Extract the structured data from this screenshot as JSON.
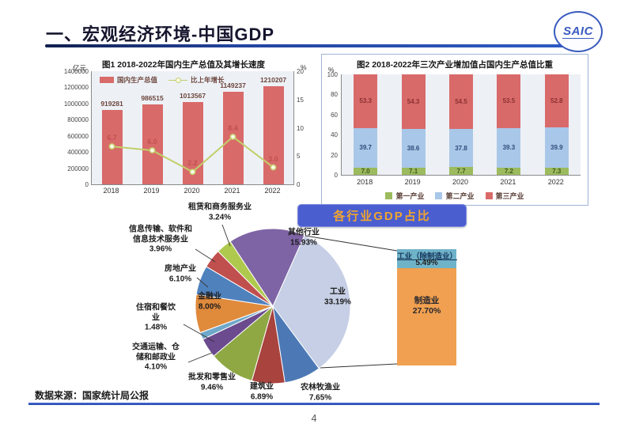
{
  "slide": {
    "title": "一、宏观经济环境-中国GDP",
    "logo": "SAIC",
    "footer_source": "数据来源：国家统计局公报",
    "page_number": "4"
  },
  "banner": {
    "title": "各行业GDP占比",
    "bg_color": "#4a5ed0",
    "text_color": "#f2a52e"
  },
  "chart_data": [
    {
      "id": "gdp-total",
      "type": "bar+line",
      "title": "图1  2018-2022年国内生产总值及其增长速度",
      "left_axis_label": "亿元",
      "right_axis_label": "%",
      "categories": [
        "2018",
        "2019",
        "2020",
        "2021",
        "2022"
      ],
      "series": [
        {
          "name": "国内生产总值",
          "type": "bar",
          "values": [
            919281,
            986515,
            1013567,
            1149237,
            1210207
          ],
          "color": "#d96a6a"
        },
        {
          "name": "比上年增长",
          "type": "line",
          "values": [
            6.7,
            6.0,
            2.2,
            8.4,
            3.0
          ],
          "color": "#c2cf6b",
          "label_color": "#c0504d"
        }
      ],
      "left_ticks": [
        "1400000",
        "1200000",
        "1000000",
        "800000",
        "600000",
        "400000",
        "200000",
        "0"
      ],
      "right_ticks": [
        "20",
        "15",
        "10",
        "5",
        "0"
      ],
      "left_max": 1400000,
      "right_max": 20,
      "legend_position": "top-left-inside",
      "grid": false
    },
    {
      "id": "industry-structure",
      "type": "stacked-bar",
      "title": "图2  2018-2022年三次产业增加值占国内生产总值比重",
      "axis_label": "%",
      "categories": [
        "2018",
        "2019",
        "2020",
        "2021",
        "2022"
      ],
      "series": [
        {
          "name": "第一产业",
          "values": [
            7.0,
            7.1,
            7.7,
            7.2,
            7.3
          ],
          "color": "#9cbb5e",
          "label_color": "#3f5a1a"
        },
        {
          "name": "第二产业",
          "values": [
            39.7,
            38.6,
            37.8,
            39.3,
            39.9
          ],
          "color": "#a9c7e8",
          "label_color": "#2f4a7a"
        },
        {
          "name": "第三产业",
          "values": [
            53.3,
            54.3,
            54.5,
            53.5,
            52.8
          ],
          "color": "#d96a6a",
          "label_color": "#8b3030"
        }
      ],
      "ticks": [
        "100",
        "80",
        "60",
        "40",
        "20",
        "0"
      ],
      "max": 100,
      "legend_position": "bottom",
      "grid": false
    },
    {
      "id": "gdp-by-sector",
      "type": "pie",
      "title": "各行业GDP占比",
      "slices": [
        {
          "name": "工业",
          "name_wrap": "工业",
          "value": 33.19,
          "color": "#c6cfe5"
        },
        {
          "name": "农林牧渔业",
          "name_wrap": "农林牧渔业",
          "value": 7.65,
          "color": "#4c79b5"
        },
        {
          "name": "建筑业",
          "name_wrap": "建筑业",
          "value": 6.89,
          "color": "#a8433e"
        },
        {
          "name": "批发和零售业",
          "name_wrap": "批发和零售业",
          "value": 9.46,
          "color": "#8fa844"
        },
        {
          "name": "交通运输、仓储和邮政业",
          "name_wrap": "交通运输、仓\n储和邮政业",
          "value": 4.1,
          "color": "#6b4a8e"
        },
        {
          "name": "住宿和餐饮业",
          "name_wrap": "住宿和餐饮\n业",
          "value": 1.48,
          "color": "#6fa8c9"
        },
        {
          "name": "金融业",
          "name_wrap": "金融业",
          "value": 8.0,
          "color": "#e08a3c"
        },
        {
          "name": "房地产业",
          "name_wrap": "房地产业",
          "value": 6.1,
          "color": "#4f81bd"
        },
        {
          "name": "信息传输、软件和信息技术服务业",
          "name_wrap": "信息传输、软件和\n信息技术服务业",
          "value": 3.96,
          "color": "#c0504d"
        },
        {
          "name": "租赁和商务服务业",
          "name_wrap": "租赁和商务服务业",
          "value": 3.24,
          "color": "#afc94f"
        },
        {
          "name": "其他行业",
          "name_wrap": "其他行业",
          "value": 15.93,
          "color": "#7e64a5"
        }
      ],
      "callout": {
        "of_slice": "工业",
        "segments": [
          {
            "name": "工业（除制造业）",
            "value": 5.49,
            "color": "#6fb3c8"
          },
          {
            "name": "制造业",
            "value": 27.7,
            "color": "#f0a050"
          }
        ]
      }
    }
  ]
}
